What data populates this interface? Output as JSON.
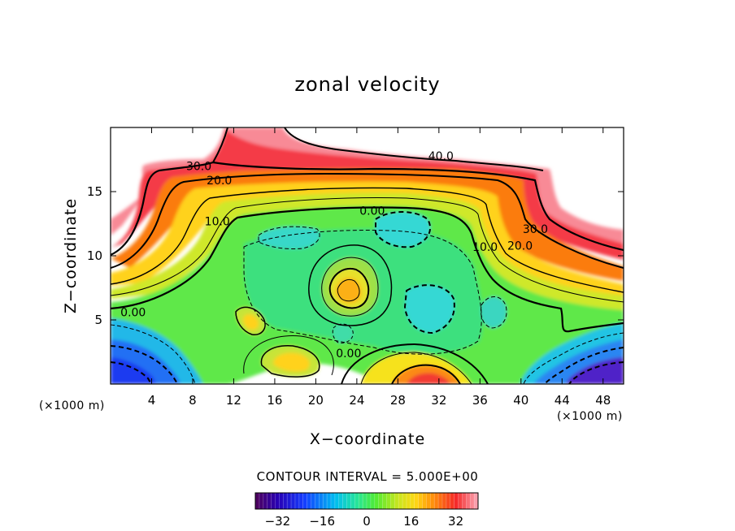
{
  "chart_data": {
    "type": "heatmap",
    "title": "zonal velocity",
    "xlabel": "X−coordinate",
    "ylabel": "Z−coordinate",
    "x_unit_left": "(×1000 m)",
    "x_unit_right": "(×1000 m)",
    "xlim": [
      0,
      50
    ],
    "ylim": [
      0,
      20
    ],
    "x_ticks": [
      4,
      8,
      12,
      16,
      20,
      24,
      28,
      32,
      36,
      40,
      44,
      48
    ],
    "y_ticks": [
      5,
      10,
      15
    ],
    "contour_interval_label": "CONTOUR INTERVAL = 5.000E+00",
    "contour_interval": 5,
    "colorbar": {
      "min": -40,
      "max": 40,
      "ticks": [
        -32,
        -16,
        0,
        16,
        32
      ]
    },
    "contour_labels": [
      {
        "text": "30.0",
        "x": 8.6,
        "z": 17.0
      },
      {
        "text": "20.0",
        "x": 10.6,
        "z": 15.9
      },
      {
        "text": "40.0",
        "x": 32.2,
        "z": 17.8
      },
      {
        "text": "0.00",
        "x": 25.5,
        "z": 13.5
      },
      {
        "text": "10.0",
        "x": 10.4,
        "z": 12.7
      },
      {
        "text": "30.0",
        "x": 41.4,
        "z": 12.1
      },
      {
        "text": "20.0",
        "x": 39.9,
        "z": 10.8
      },
      {
        "text": "10.0",
        "x": 36.5,
        "z": 10.7
      },
      {
        "text": "0.00",
        "x": 2.2,
        "z": 5.6
      },
      {
        "text": "0.00",
        "x": 23.2,
        "z": 2.4
      }
    ],
    "features": [
      {
        "kind": "jet",
        "desc": "velocity 30-40 upper boundary band (left, top and right of domain)"
      },
      {
        "kind": "max",
        "x": 22.7,
        "z": 7.4,
        "value": 30
      },
      {
        "kind": "max",
        "x": 17.6,
        "z": 1.8,
        "value": 22
      },
      {
        "kind": "max",
        "x": 13.7,
        "z": 4.9,
        "value": 22
      },
      {
        "kind": "max",
        "x": 30.8,
        "z": 0.3,
        "value": 35
      },
      {
        "kind": "min",
        "x": 3.0,
        "z": 0.5,
        "value": -32
      },
      {
        "kind": "min",
        "x": 45.5,
        "z": 0.2,
        "value": -38
      },
      {
        "kind": "min",
        "x": 29.8,
        "z": 6.0,
        "value": -10
      },
      {
        "kind": "min",
        "x": 28.0,
        "z": 11.9,
        "value": -10
      },
      {
        "kind": "min",
        "x": 18.6,
        "z": 11.6,
        "value": -8
      }
    ]
  }
}
